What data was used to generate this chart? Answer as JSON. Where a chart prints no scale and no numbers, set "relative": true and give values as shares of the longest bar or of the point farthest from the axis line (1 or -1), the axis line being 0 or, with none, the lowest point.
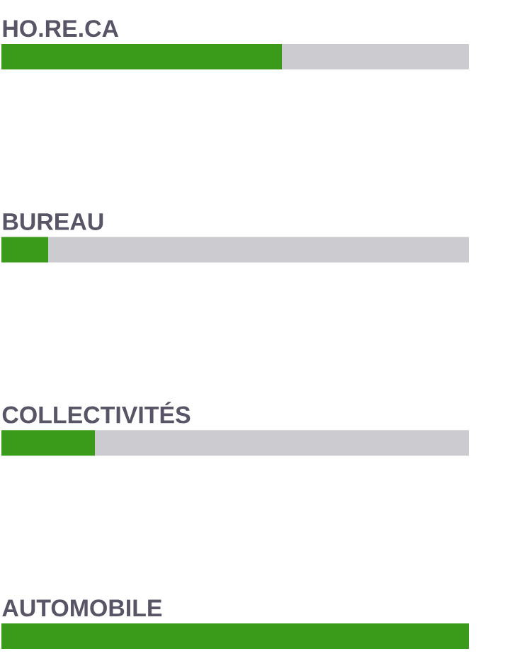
{
  "chart_data": {
    "type": "bar",
    "orientation": "horizontal",
    "relative": true,
    "stacked": true,
    "categories": [
      "HO.RE.CA",
      "BUREAU",
      "COLLECTIVITÉS",
      "AUTOMOBILE"
    ],
    "series": [
      {
        "color": "#3a9a1a",
        "values": [
          0.6,
          0.1,
          0.2,
          1.0
        ]
      },
      {
        "color": "#cccbd0",
        "values": [
          0.4,
          0.9,
          0.8,
          0.0
        ]
      }
    ]
  }
}
